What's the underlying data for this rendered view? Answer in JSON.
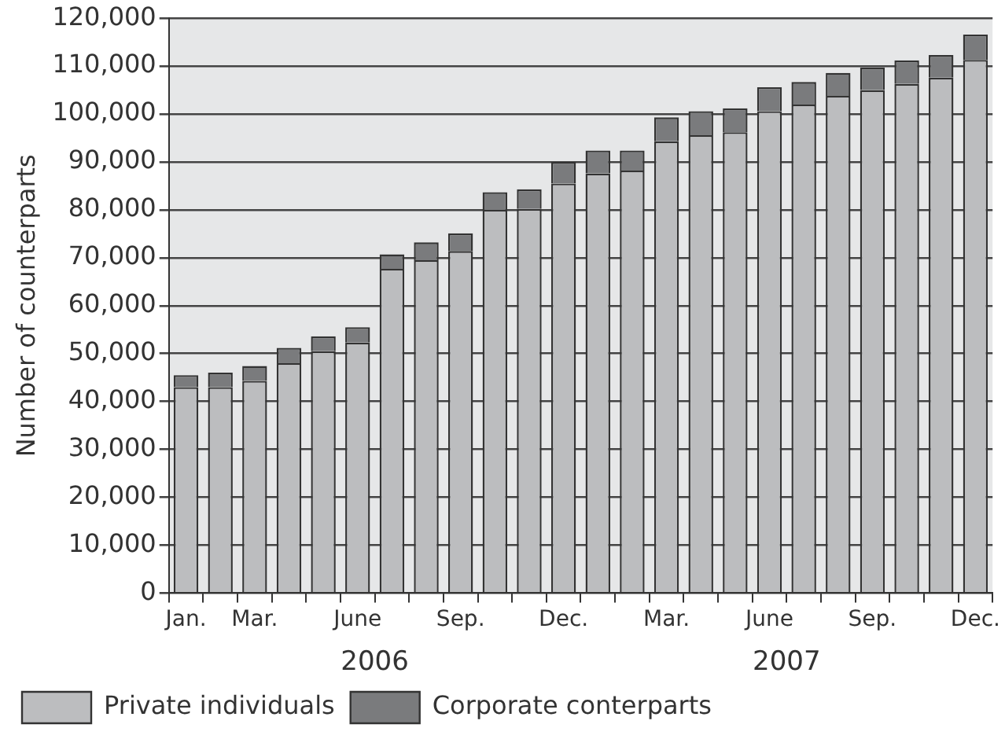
{
  "chart_data": {
    "type": "bar",
    "stacked": true,
    "ylabel": "Number of counterparts",
    "categories": [
      "Jan.",
      null,
      "Mar.",
      null,
      null,
      "June",
      null,
      null,
      "Sep.",
      null,
      null,
      "Dec.",
      null,
      null,
      "Mar.",
      null,
      null,
      "June",
      null,
      null,
      "Sep.",
      null,
      null,
      "Dec."
    ],
    "series": [
      {
        "name": "Private individuals",
        "color": "#bcbdbf",
        "values": [
          43000,
          43000,
          44300,
          48000,
          50500,
          52300,
          67700,
          69500,
          71400,
          80000,
          80200,
          85500,
          87600,
          88200,
          94300,
          95600,
          96200,
          100600,
          102000,
          103800,
          105000,
          106300,
          107600,
          111300
        ]
      },
      {
        "name": "Corporate conterparts",
        "color": "#7a7b7d",
        "values": [
          2500,
          3000,
          3100,
          3200,
          3100,
          3200,
          3000,
          3700,
          3700,
          3700,
          4100,
          4500,
          4800,
          4200,
          5000,
          5000,
          5000,
          5000,
          4700,
          4800,
          4700,
          4900,
          4700,
          5300
        ]
      }
    ],
    "ylim": [
      0,
      120000
    ],
    "yticks": [
      0,
      {
        "value": 10000,
        "label": "10,000"
      },
      {
        "value": 20000,
        "label": "20,000"
      },
      {
        "value": 30000,
        "label": "30,000"
      },
      {
        "value": 40000,
        "label": "40,000"
      },
      {
        "value": 50000,
        "label": "50,000"
      },
      {
        "value": 60000,
        "label": "60,000"
      },
      {
        "value": 70000,
        "label": "70,000"
      },
      {
        "value": 80000,
        "label": "80,000"
      },
      {
        "value": 90000,
        "label": "90,000"
      },
      {
        "value": 100000,
        "label": "100,000"
      },
      {
        "value": 110000,
        "label": "110,000"
      },
      {
        "value": 120000,
        "label": "120,000"
      }
    ],
    "grid": "y",
    "legend": "bottom left",
    "annotations": [
      "2006",
      "2007"
    ]
  }
}
